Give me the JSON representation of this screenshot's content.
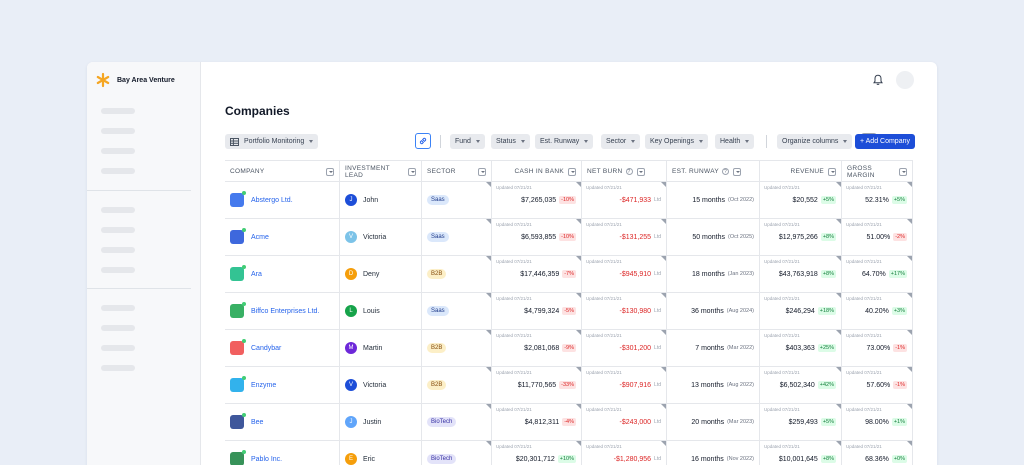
{
  "brand": {
    "name": "Bay Area Venture",
    "color": "#f5a623"
  },
  "page": {
    "title": "Companies"
  },
  "toolbar": {
    "view": "Portfolio Monitoring",
    "filters": [
      "Fund",
      "Status",
      "Est. Runway",
      "Sector",
      "Key Openings",
      "Health"
    ],
    "organize": "Organize columns",
    "add_company": "+ Add Company"
  },
  "columns": {
    "company": "Company",
    "lead": "Investment Lead",
    "sector": "Sector",
    "cash": "Cash in bank",
    "burn": "Net burn",
    "runway": "Est. runway",
    "revenue": "Revenue",
    "margin": "Gross margin"
  },
  "updated_label": "Updated 07/21/21",
  "ltd_label": "Ltd",
  "rows": [
    {
      "company": "Abstergo Ltd.",
      "logo_color": "#2563eb",
      "lead": "John",
      "initial": "J",
      "avatar_color": "#1d4ed8",
      "sector": "Saas",
      "sector_class": "saas",
      "cash": "$7,265,035",
      "cash_chg": "-10%",
      "cash_dir": "down",
      "burn": "-$471,933",
      "runway": "15 months",
      "runway_date": "(Oct 2022)",
      "revenue": "$20,552",
      "rev_chg": "+5%",
      "rev_dir": "up",
      "margin": "52.31%",
      "margin_chg": "+5%",
      "margin_dir": "up"
    },
    {
      "company": "Acme",
      "logo_color": "#1d4ed8",
      "lead": "Victoria",
      "initial": "V",
      "avatar_color": "#7cc3e8",
      "sector": "Saas",
      "sector_class": "saas",
      "cash": "$6,593,855",
      "cash_chg": "-10%",
      "cash_dir": "down",
      "burn": "-$131,255",
      "runway": "50 months",
      "runway_date": "(Oct 2025)",
      "revenue": "$12,975,266",
      "rev_chg": "+8%",
      "rev_dir": "up",
      "margin": "51.00%",
      "margin_chg": "-2%",
      "margin_dir": "down"
    },
    {
      "company": "Ara",
      "logo_color": "#10b981",
      "lead": "Deny",
      "initial": "D",
      "avatar_color": "#f59e0b",
      "sector": "B2B",
      "sector_class": "b2b",
      "cash": "$17,446,359",
      "cash_chg": "-7%",
      "cash_dir": "down",
      "burn": "-$945,910",
      "runway": "18 months",
      "runway_date": "(Jan 2023)",
      "revenue": "$43,763,918",
      "rev_chg": "+8%",
      "rev_dir": "up",
      "margin": "64.70%",
      "margin_chg": "+17%",
      "margin_dir": "up"
    },
    {
      "company": "Biffco Enterprises Ltd.",
      "logo_color": "#16a34a",
      "lead": "Louis",
      "initial": "L",
      "avatar_color": "#16a34a",
      "sector": "Saas",
      "sector_class": "saas",
      "cash": "$4,799,324",
      "cash_chg": "-5%",
      "cash_dir": "down",
      "burn": "-$130,980",
      "runway": "36 months",
      "runway_date": "(Aug 2024)",
      "revenue": "$246,294",
      "rev_chg": "+18%",
      "rev_dir": "up",
      "margin": "40.20%",
      "margin_chg": "+3%",
      "margin_dir": "up"
    },
    {
      "company": "Candybar",
      "logo_color": "#ef4444",
      "lead": "Martin",
      "initial": "M",
      "avatar_color": "#6d28d9",
      "sector": "B2B",
      "sector_class": "b2b",
      "cash": "$2,081,068",
      "cash_chg": "-9%",
      "cash_dir": "down",
      "burn": "-$301,200",
      "runway": "7 months",
      "runway_date": "(Mar 2022)",
      "revenue": "$403,363",
      "rev_chg": "+25%",
      "rev_dir": "up",
      "margin": "73.00%",
      "margin_chg": "-1%",
      "margin_dir": "down"
    },
    {
      "company": "Enzyme",
      "logo_color": "#0ea5e9",
      "lead": "Victoria",
      "initial": "V",
      "avatar_color": "#1d4ed8",
      "sector": "B2B",
      "sector_class": "b2b",
      "cash": "$11,770,565",
      "cash_chg": "-33%",
      "cash_dir": "down",
      "burn": "-$907,916",
      "runway": "13 months",
      "runway_date": "(Aug 2022)",
      "revenue": "$6,502,340",
      "rev_chg": "+42%",
      "rev_dir": "up",
      "margin": "57.60%",
      "margin_chg": "-1%",
      "margin_dir": "down"
    },
    {
      "company": "Bee",
      "logo_color": "#1e3a8a",
      "lead": "Justin",
      "initial": "J",
      "avatar_color": "#60a5fa",
      "sector": "BioTech",
      "sector_class": "biotech",
      "cash": "$4,812,311",
      "cash_chg": "-4%",
      "cash_dir": "down",
      "burn": "-$243,000",
      "runway": "20 months",
      "runway_date": "(Mar 2023)",
      "revenue": "$259,493",
      "rev_chg": "+5%",
      "rev_dir": "up",
      "margin": "98.00%",
      "margin_chg": "+1%",
      "margin_dir": "up"
    },
    {
      "company": "Pablo Inc.",
      "logo_color": "#15803d",
      "lead": "Eric",
      "initial": "E",
      "avatar_color": "#f59e0b",
      "sector": "BioTech",
      "sector_class": "biotech",
      "cash": "$20,301,712",
      "cash_chg": "+10%",
      "cash_dir": "up",
      "burn": "-$1,280,956",
      "runway": "16 months",
      "runway_date": "(Nov 2022)",
      "revenue": "$10,001,645",
      "rev_chg": "+8%",
      "rev_dir": "up",
      "margin": "68.36%",
      "margin_chg": "+0%",
      "margin_dir": "up"
    }
  ]
}
